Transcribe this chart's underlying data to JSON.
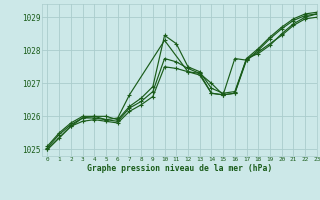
{
  "title": "Graphe pression niveau de la mer (hPa)",
  "bg_color": "#cce8e8",
  "grid_color": "#aacccc",
  "line_color": "#1a5c1a",
  "xlim": [
    -0.5,
    23
  ],
  "ylim": [
    1024.8,
    1029.4
  ],
  "yticks": [
    1025,
    1026,
    1027,
    1028,
    1029
  ],
  "xticks": [
    0,
    1,
    2,
    3,
    4,
    5,
    6,
    7,
    8,
    9,
    10,
    11,
    12,
    13,
    14,
    15,
    16,
    17,
    18,
    19,
    20,
    21,
    22,
    23
  ],
  "series": [
    {
      "x": [
        0,
        1,
        2,
        3,
        4,
        5,
        6,
        7,
        8,
        9,
        10,
        11,
        12,
        13,
        14,
        15,
        16,
        17,
        18,
        19,
        20,
        21,
        22,
        23
      ],
      "y": [
        1025.1,
        1025.5,
        1025.8,
        1026.0,
        1026.0,
        1026.0,
        1025.9,
        1026.3,
        1026.55,
        1026.9,
        1028.45,
        1028.2,
        1027.5,
        1027.35,
        1026.85,
        1026.7,
        1026.75,
        1027.75,
        1027.9,
        1028.15,
        1028.5,
        1028.8,
        1029.0,
        1029.1
      ]
    },
    {
      "x": [
        0,
        1,
        2,
        3,
        4,
        5,
        6,
        7,
        8,
        9,
        10,
        11,
        12,
        13,
        14,
        15,
        16,
        17,
        18,
        19,
        20,
        21,
        22,
        23
      ],
      "y": [
        1025.05,
        1025.45,
        1025.75,
        1025.95,
        1025.95,
        1025.9,
        1025.85,
        1026.25,
        1026.45,
        1026.75,
        1027.75,
        1027.65,
        1027.45,
        1027.3,
        1027.0,
        1026.65,
        1026.7,
        1027.75,
        1028.05,
        1028.4,
        1028.7,
        1028.95,
        1029.1,
        1029.15
      ]
    },
    {
      "x": [
        0,
        2,
        3,
        4,
        5,
        6,
        7,
        10,
        12,
        13,
        14,
        15,
        16,
        17,
        20,
        21,
        22,
        23
      ],
      "y": [
        1025.0,
        1025.7,
        1025.95,
        1026.0,
        1025.9,
        1025.95,
        1026.65,
        1028.3,
        1027.35,
        1027.3,
        1026.7,
        1026.65,
        1027.75,
        1027.7,
        1028.45,
        1028.75,
        1028.95,
        1029.0
      ]
    },
    {
      "x": [
        0,
        1,
        2,
        3,
        4,
        5,
        6,
        7,
        8,
        9,
        10,
        11,
        12,
        13,
        14,
        15,
        16,
        17,
        18,
        19,
        20,
        21,
        22,
        23
      ],
      "y": [
        1025.0,
        1025.35,
        1025.7,
        1025.85,
        1025.9,
        1025.85,
        1025.8,
        1026.15,
        1026.35,
        1026.6,
        1027.5,
        1027.45,
        1027.35,
        1027.25,
        1026.7,
        1026.65,
        1026.7,
        1027.7,
        1028.0,
        1028.35,
        1028.65,
        1028.9,
        1029.05,
        1029.1
      ]
    }
  ]
}
